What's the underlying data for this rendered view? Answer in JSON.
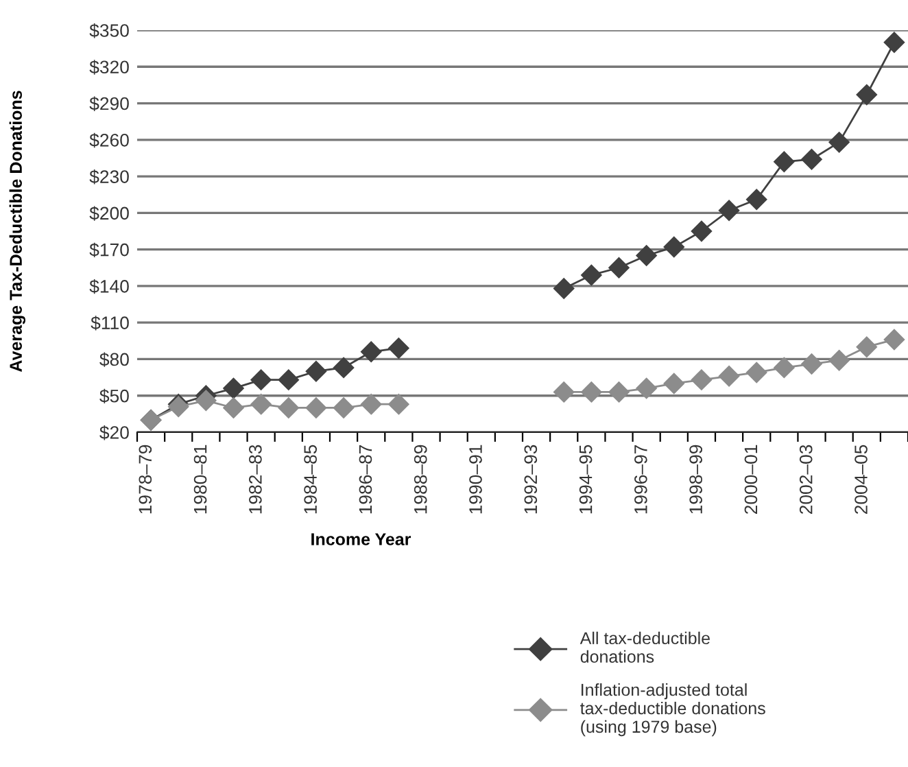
{
  "chart_data": {
    "type": "line",
    "xlabel": "Income Year",
    "ylabel": "Average Tax-Deductible Donations",
    "categories": [
      "1978–79",
      null,
      "1980–81",
      null,
      "1982–83",
      null,
      "1984–85",
      null,
      "1986–87",
      null,
      "1988–89",
      null,
      "1990–91",
      null,
      "1992–93",
      null,
      "1994–95",
      null,
      "1996–97",
      null,
      "1998–99",
      null,
      "2000–01",
      null,
      "2002–03",
      null,
      "2004–05",
      null
    ],
    "series": [
      {
        "name": "All tax-deductible donations",
        "color": "#404040",
        "values": [
          30,
          43,
          50,
          56,
          63,
          63,
          70,
          73,
          86,
          89,
          null,
          null,
          null,
          null,
          null,
          138,
          149,
          155,
          165,
          172,
          185,
          202,
          211,
          242,
          244,
          258,
          297,
          340
        ]
      },
      {
        "name": "Inflation-adjusted total tax-deductible donations (using 1979 base)",
        "color": "#8c8c8c",
        "values": [
          30,
          41,
          46,
          40,
          43,
          40,
          40,
          40,
          43,
          43,
          null,
          null,
          null,
          null,
          null,
          53,
          53,
          53,
          56,
          60,
          63,
          66,
          69,
          73,
          76,
          79,
          90,
          96
        ]
      }
    ],
    "ylim": [
      20,
      350
    ],
    "yticks": [
      {
        "value": 20,
        "label": "$20"
      },
      {
        "value": 50,
        "label": "$50"
      },
      {
        "value": 80,
        "label": "$80"
      },
      {
        "value": 110,
        "label": "$110"
      },
      {
        "value": 140,
        "label": "$140"
      },
      {
        "value": 170,
        "label": "$170"
      },
      {
        "value": 200,
        "label": "$200"
      },
      {
        "value": 230,
        "label": "$230"
      },
      {
        "value": 260,
        "label": "$260"
      },
      {
        "value": 290,
        "label": "$290"
      },
      {
        "value": 320,
        "label": "$320"
      },
      {
        "value": 350,
        "label": "$350"
      }
    ],
    "grid": "y",
    "legend": "bottom right",
    "marker": "diamond",
    "line_style": "solid"
  }
}
